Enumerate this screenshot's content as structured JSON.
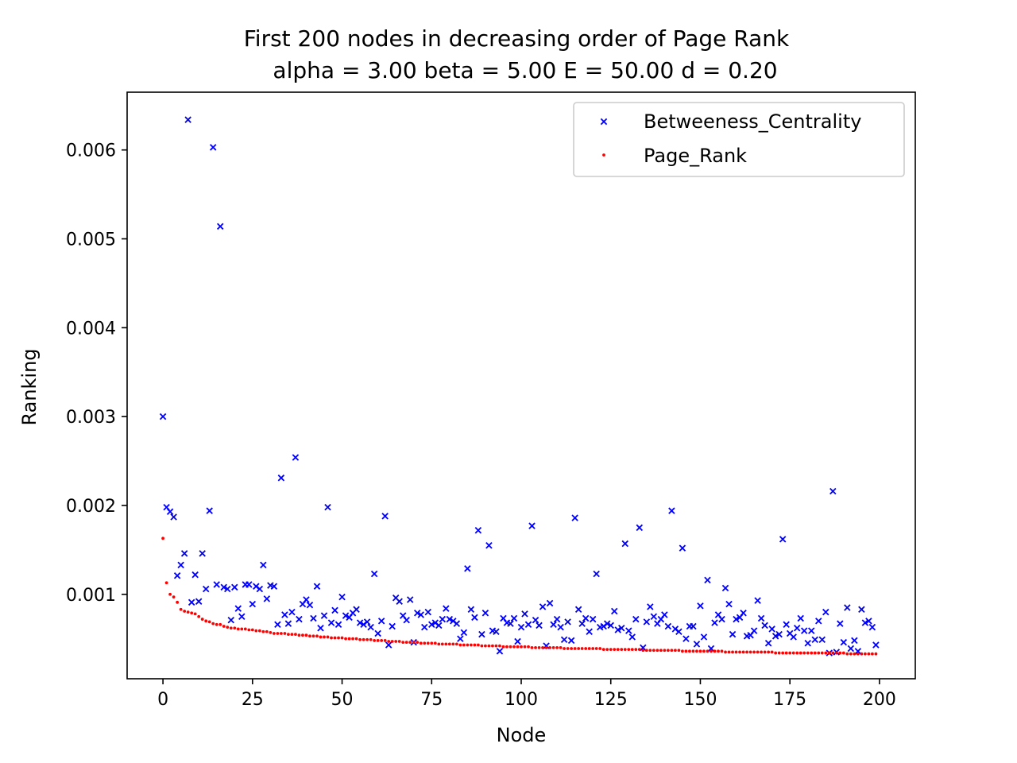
{
  "chart_data": {
    "type": "scatter",
    "title": "First 200 nodes in decreasing order of Page Rank",
    "subtitle": "alpha = 3.00 beta = 5.00 E = 50.00 d = 0.20",
    "xlabel": "Node",
    "ylabel": "Ranking",
    "xlim": [
      -10,
      210
    ],
    "ylim": [
      5e-05,
      0.00665
    ],
    "x_ticks": [
      0,
      25,
      50,
      75,
      100,
      125,
      150,
      175,
      200
    ],
    "x_tick_labels": [
      "0",
      "25",
      "50",
      "75",
      "100",
      "125",
      "150",
      "175",
      "200"
    ],
    "y_ticks": [
      0.001,
      0.002,
      0.003,
      0.004,
      0.005,
      0.006
    ],
    "y_tick_labels": [
      "0.001",
      "0.002",
      "0.003",
      "0.004",
      "0.005",
      "0.006"
    ],
    "grid": false,
    "legend_position": "upper right",
    "series": [
      {
        "name": "Betweeness_Centrality",
        "marker": "x",
        "color": "#0000ff",
        "y": [
          0.003,
          0.00198,
          0.00193,
          0.00187,
          0.00121,
          0.00133,
          0.00146,
          0.00634,
          0.00091,
          0.00122,
          0.00092,
          0.00146,
          0.00106,
          0.00194,
          0.00603,
          0.00111,
          0.00514,
          0.00108,
          0.00106,
          0.00071,
          0.00108,
          0.00084,
          0.00075,
          0.00111,
          0.00111,
          0.00089,
          0.00109,
          0.00106,
          0.00133,
          0.00095,
          0.0011,
          0.00109,
          0.00066,
          0.00231,
          0.00077,
          0.00067,
          0.0008,
          0.00254,
          0.00072,
          0.00089,
          0.00094,
          0.00088,
          0.00073,
          0.00109,
          0.00062,
          0.00076,
          0.00198,
          0.00068,
          0.00082,
          0.00066,
          0.00097,
          0.00076,
          0.00074,
          0.00079,
          0.00083,
          0.00068,
          0.00066,
          0.00069,
          0.00063,
          0.00123,
          0.00056,
          0.0007,
          0.00188,
          0.00043,
          0.00064,
          0.00096,
          0.00092,
          0.00076,
          0.00071,
          0.00094,
          0.00046,
          0.00079,
          0.00077,
          0.00063,
          0.0008,
          0.00066,
          0.00068,
          0.00065,
          0.00072,
          0.00084,
          0.00072,
          0.0007,
          0.00067,
          0.0005,
          0.00057,
          0.00129,
          0.00083,
          0.00074,
          0.00172,
          0.00055,
          0.00079,
          0.00155,
          0.00059,
          0.00058,
          0.00036,
          0.00073,
          0.00068,
          0.00067,
          0.00073,
          0.00047,
          0.00063,
          0.00078,
          0.00066,
          0.00177,
          0.00071,
          0.00065,
          0.00086,
          0.00042,
          0.0009,
          0.00066,
          0.00072,
          0.00063,
          0.00049,
          0.00069,
          0.00048,
          0.00186,
          0.00083,
          0.00067,
          0.00073,
          0.00058,
          0.00072,
          0.00123,
          0.00063,
          0.00064,
          0.00067,
          0.00065,
          0.00081,
          0.0006,
          0.00062,
          0.00157,
          0.00059,
          0.00052,
          0.00072,
          0.00175,
          0.0004,
          0.00069,
          0.00086,
          0.00075,
          0.00067,
          0.00072,
          0.00077,
          0.00064,
          0.00194,
          0.00061,
          0.00058,
          0.00152,
          0.0005,
          0.00064,
          0.00064,
          0.00044,
          0.00087,
          0.00052,
          0.00116,
          0.00039,
          0.00068,
          0.00077,
          0.00072,
          0.00107,
          0.00089,
          0.00055,
          0.00072,
          0.00074,
          0.00079,
          0.00053,
          0.00054,
          0.00059,
          0.00093,
          0.00073,
          0.00065,
          0.00045,
          0.00061,
          0.00053,
          0.00055,
          0.00162,
          0.00066,
          0.00056,
          0.00052,
          0.00062,
          0.00073,
          0.00059,
          0.00045,
          0.00059,
          0.00049,
          0.0007,
          0.00049,
          0.0008,
          0.00034,
          0.00216,
          0.00035,
          0.00067,
          0.00046,
          0.00085,
          0.00039,
          0.00048,
          0.00036,
          0.00083,
          0.00068,
          0.0007,
          0.00063,
          0.00043
        ]
      },
      {
        "name": "Page_Rank",
        "marker": "dot",
        "color": "#ff0000",
        "y": [
          0.00163,
          0.00113,
          0.001,
          0.00097,
          0.00091,
          0.00083,
          0.00081,
          0.0008,
          0.00079,
          0.00078,
          0.00075,
          0.00072,
          0.0007,
          0.00069,
          0.00067,
          0.00066,
          0.00066,
          0.00064,
          0.00063,
          0.00062,
          0.00062,
          0.00061,
          0.00061,
          0.00061,
          0.0006,
          0.0006,
          0.00059,
          0.00059,
          0.00058,
          0.00058,
          0.00057,
          0.00056,
          0.00056,
          0.00056,
          0.00056,
          0.00055,
          0.00055,
          0.00055,
          0.00054,
          0.00054,
          0.00054,
          0.00053,
          0.00053,
          0.00053,
          0.00052,
          0.00052,
          0.00052,
          0.00051,
          0.00051,
          0.00051,
          0.00051,
          0.0005,
          0.0005,
          0.0005,
          0.0005,
          0.00049,
          0.00049,
          0.00049,
          0.00049,
          0.00048,
          0.00048,
          0.00048,
          0.00048,
          0.00047,
          0.00047,
          0.00047,
          0.00047,
          0.00046,
          0.00046,
          0.00046,
          0.00046,
          0.00046,
          0.00045,
          0.00045,
          0.00045,
          0.00045,
          0.00045,
          0.00044,
          0.00044,
          0.00044,
          0.00044,
          0.00044,
          0.00044,
          0.00043,
          0.00043,
          0.00043,
          0.00043,
          0.00043,
          0.00043,
          0.00042,
          0.00042,
          0.00042,
          0.00042,
          0.00042,
          0.00042,
          0.00041,
          0.00041,
          0.00041,
          0.00041,
          0.00041,
          0.00041,
          0.00041,
          0.00041,
          0.0004,
          0.0004,
          0.0004,
          0.0004,
          0.0004,
          0.0004,
          0.0004,
          0.0004,
          0.0004,
          0.00039,
          0.00039,
          0.00039,
          0.00039,
          0.00039,
          0.00039,
          0.00039,
          0.00039,
          0.00039,
          0.00039,
          0.00039,
          0.00038,
          0.00038,
          0.00038,
          0.00038,
          0.00038,
          0.00038,
          0.00038,
          0.00038,
          0.00038,
          0.00038,
          0.00038,
          0.00037,
          0.00037,
          0.00037,
          0.00037,
          0.00037,
          0.00037,
          0.00037,
          0.00037,
          0.00037,
          0.00037,
          0.00037,
          0.00036,
          0.00036,
          0.00036,
          0.00036,
          0.00036,
          0.00036,
          0.00036,
          0.00036,
          0.00036,
          0.00036,
          0.00036,
          0.00036,
          0.00035,
          0.00035,
          0.00035,
          0.00035,
          0.00035,
          0.00035,
          0.00035,
          0.00035,
          0.00035,
          0.00035,
          0.00035,
          0.00035,
          0.00035,
          0.00035,
          0.00034,
          0.00034,
          0.00034,
          0.00034,
          0.00034,
          0.00034,
          0.00034,
          0.00034,
          0.00034,
          0.00034,
          0.00034,
          0.00034,
          0.00034,
          0.00034,
          0.00034,
          0.00034,
          0.00034,
          0.00034,
          0.00034,
          0.00034,
          0.00033,
          0.00033,
          0.00033,
          0.00033,
          0.00033,
          0.00033,
          0.00033,
          0.00033,
          0.00033
        ]
      }
    ]
  }
}
